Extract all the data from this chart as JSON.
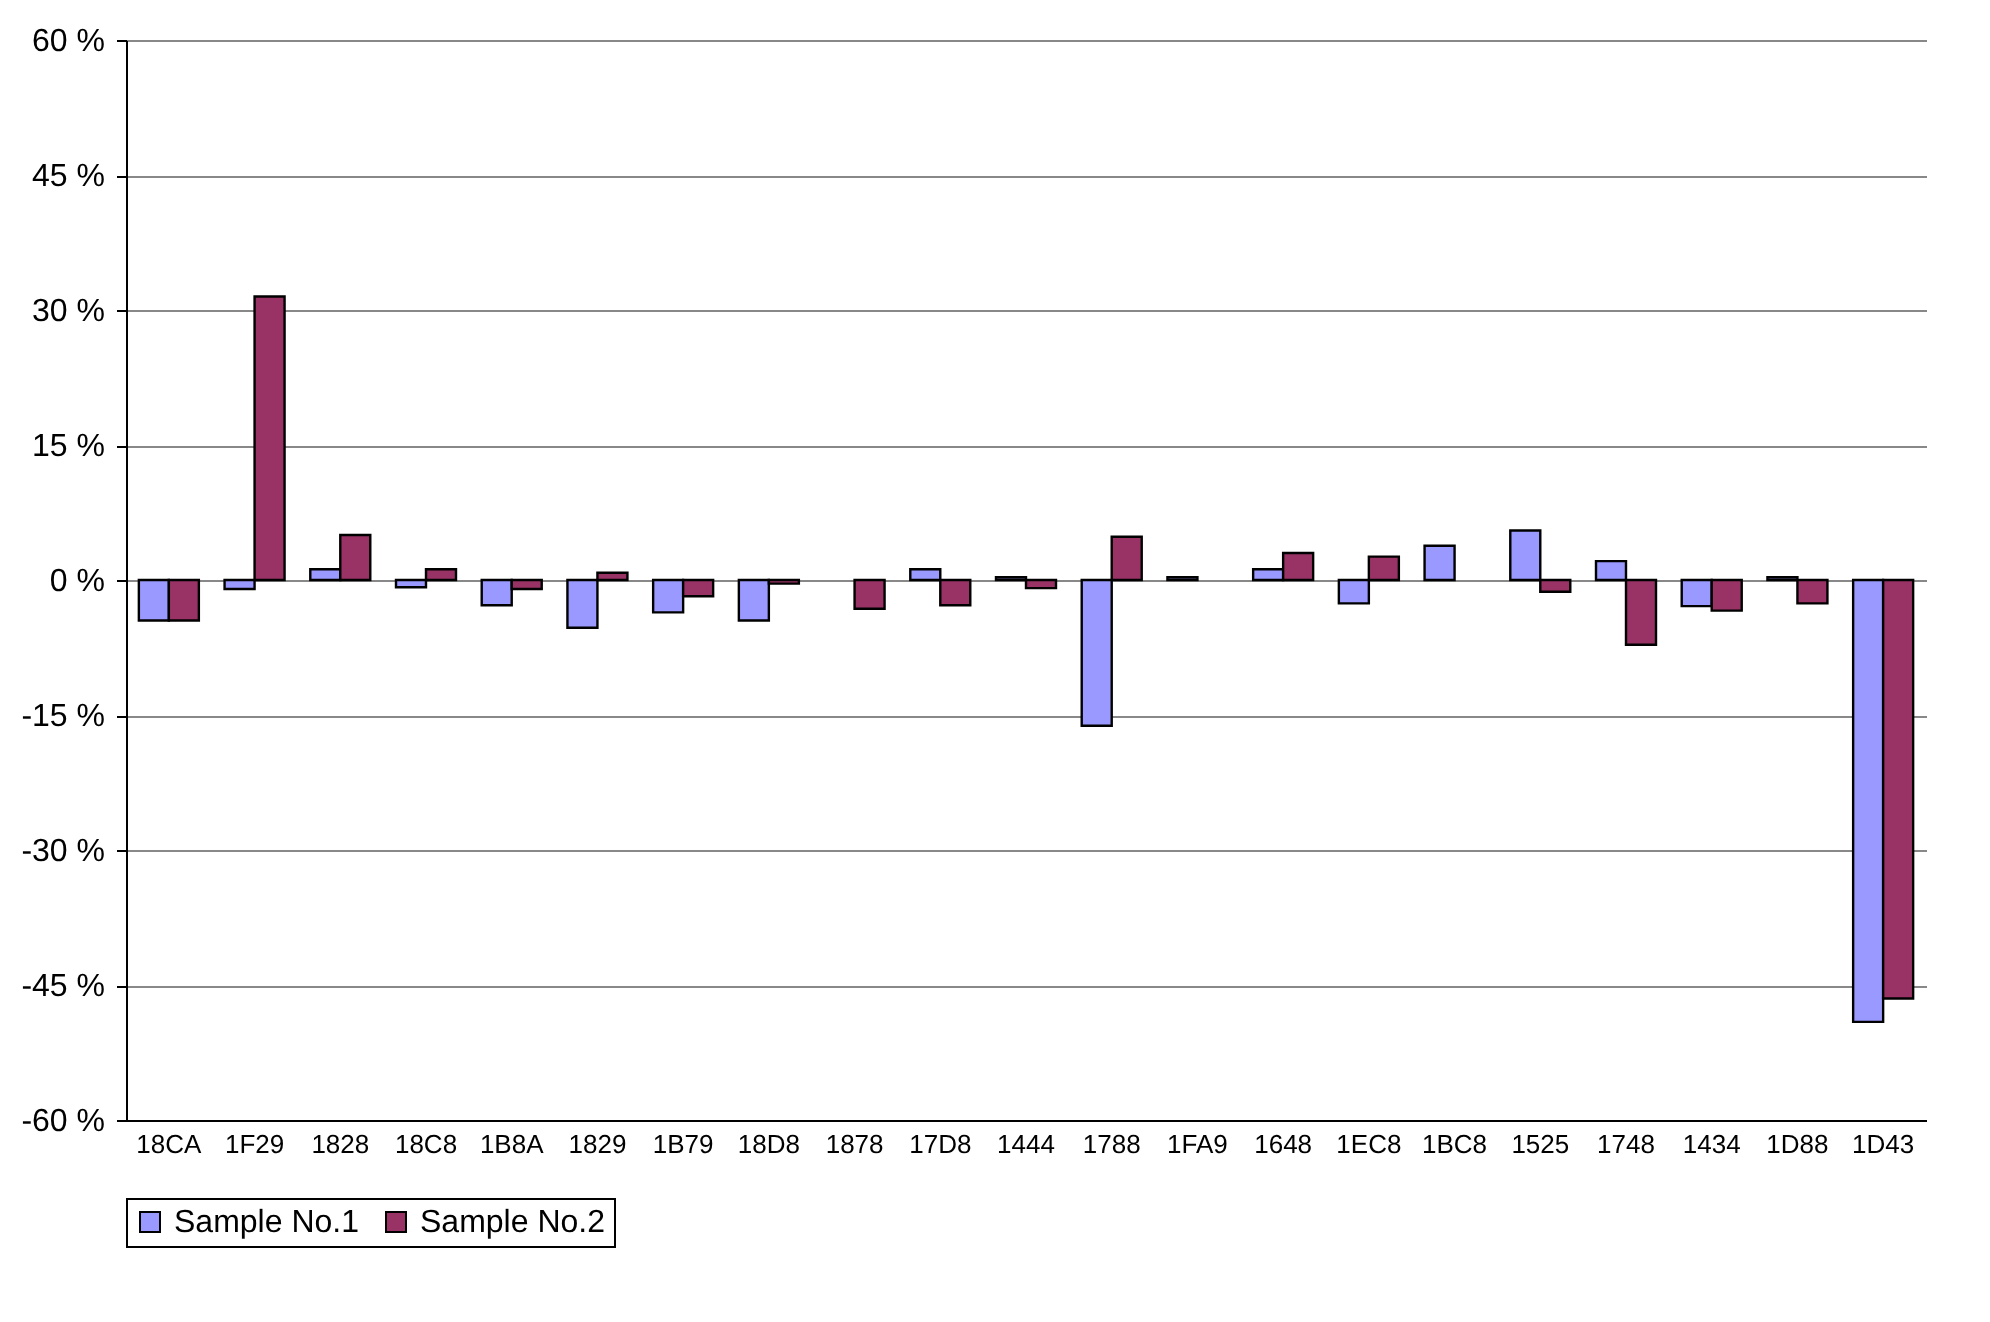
{
  "chart_data": {
    "type": "bar",
    "categories": [
      "18CA",
      "1F29",
      "1828",
      "18C8",
      "1B8A",
      "1829",
      "1B79",
      "18D8",
      "1878",
      "17D8",
      "1444",
      "1788",
      "1FA9",
      "1648",
      "1EC8",
      "1BC8",
      "1525",
      "1748",
      "1434",
      "1D88",
      "1D43"
    ],
    "series": [
      {
        "name": "Sample No.1",
        "color": "#9999ff",
        "values": [
          -4.5,
          -1.0,
          1.2,
          -0.8,
          -2.8,
          -5.3,
          -3.6,
          -4.5,
          null,
          1.2,
          0.3,
          -16.2,
          0.3,
          1.2,
          -2.6,
          3.8,
          5.5,
          2.1,
          -2.9,
          0.3,
          -49.1
        ]
      },
      {
        "name": "Sample No.2",
        "color": "#993366",
        "values": [
          -4.5,
          31.5,
          5.0,
          1.2,
          -1.0,
          0.8,
          -1.8,
          -0.4,
          -3.2,
          -2.8,
          -0.9,
          4.8,
          null,
          3.0,
          2.6,
          null,
          -1.3,
          -7.2,
          -3.4,
          -2.6,
          -46.5
        ]
      }
    ],
    "ylim": [
      -60,
      60
    ],
    "yticks": [
      {
        "value": -60,
        "label": "-60 %"
      },
      {
        "value": -45,
        "label": "-45 %"
      },
      {
        "value": -30,
        "label": "-30 %"
      },
      {
        "value": -15,
        "label": "-15 %"
      },
      {
        "value": 0,
        "label": "0 %"
      },
      {
        "value": 15,
        "label": "15 %"
      },
      {
        "value": 30,
        "label": "30 %"
      },
      {
        "value": 45,
        "label": "45 %"
      },
      {
        "value": 60,
        "label": "60 %"
      }
    ],
    "grid": "y",
    "legend": "bottom"
  }
}
